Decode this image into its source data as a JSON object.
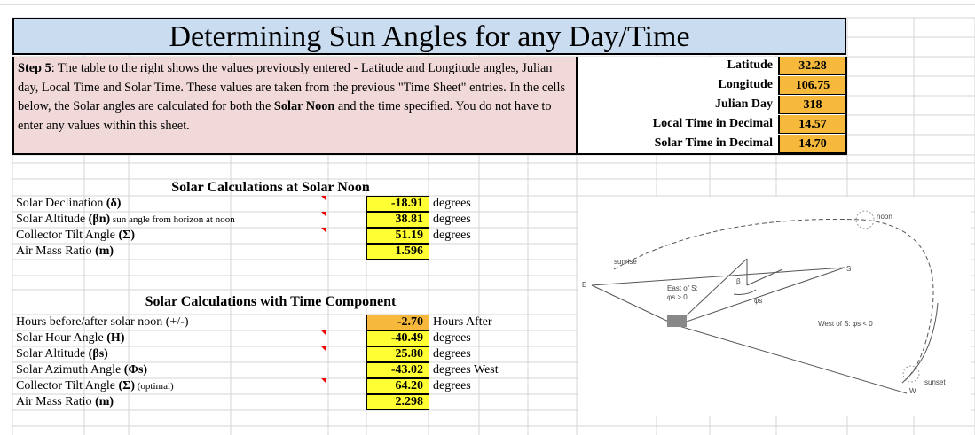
{
  "title": "Determining Sun Angles for any Day/Time",
  "intro": {
    "runs": [
      {
        "text": "Step 5",
        "bold": true
      },
      {
        "text": ": The table to the right shows the values previously entered - Latitude and Longitude angles, Julian day, Local Time and Solar Time. These values are taken from the previous \"Time Sheet\" entries. In the cells below, the Solar angles are calculated for both the ",
        "bold": false
      },
      {
        "text": "Solar Noon",
        "bold": true
      },
      {
        "text": " and the time specified. You do not have to enter any values within this sheet.",
        "bold": false
      }
    ]
  },
  "inputs": [
    {
      "label": "Latitude",
      "value": "32.28"
    },
    {
      "label": "Longitude",
      "value": "106.75"
    },
    {
      "label": "Julian Day",
      "value": "318"
    },
    {
      "label": "Local Time in Decimal",
      "value": "14.57"
    },
    {
      "label": "Solar Time in Decimal",
      "value": "14.70"
    }
  ],
  "sections": [
    {
      "heading": "Solar Calculations at Solar Noon",
      "rows": [
        {
          "label": "Solar Declination ",
          "symbol": "(δ)",
          "value": "-18.91",
          "unit": "degrees",
          "cell_color": "#ffff33"
        },
        {
          "label": "Solar Altitude ",
          "symbol": "(βn)",
          "note": " sun angle from horizon at noon",
          "value": "38.81",
          "unit": "degrees",
          "cell_color": "#ffff33"
        },
        {
          "label": "Collector Tilt Angle ",
          "symbol": "(Σ)",
          "value": "51.19",
          "unit": "degrees",
          "cell_color": "#ffff33"
        },
        {
          "label": "Air Mass Ratio ",
          "symbol": "(m)",
          "value": "1.596",
          "cell_color": "#ffff33"
        }
      ]
    },
    {
      "heading": "Solar Calculations with Time Component",
      "rows": [
        {
          "label": "Hours before/after solar noon (+/-)",
          "value": "-2.70",
          "unit": "Hours After",
          "cell_color": "#f6b93c"
        },
        {
          "label": "Solar Hour Angle ",
          "symbol": "(H)",
          "value": "-40.49",
          "unit": "degrees",
          "cell_color": "#ffff33"
        },
        {
          "label": "Solar Altitude ",
          "symbol": "(βs)",
          "value": "25.80",
          "unit": "degrees",
          "cell_color": "#ffff33"
        },
        {
          "label": "Solar Azimuth Angle ",
          "symbol": "(Φs)",
          "value": "-43.02",
          "unit": "degrees West",
          "cell_color": "#ffff33"
        },
        {
          "label": "Collector Tilt Angle ",
          "symbol": "(Σ)",
          "note": " (optimal)",
          "value": "64.20",
          "unit": "degrees",
          "cell_color": "#ffff33"
        },
        {
          "label": "Air Mass Ratio ",
          "symbol": "(m)",
          "value": "2.298",
          "cell_color": "#ffff33"
        }
      ]
    }
  ],
  "diagram": {
    "sunrise": "sunrise",
    "noon": "noon",
    "south": "S",
    "east": "E",
    "west": "W",
    "sunset": "sunset",
    "east_note_1": "East of S:",
    "east_note_2": "φs > 0",
    "west_note": "West of S: φs < 0",
    "beta": "β",
    "azimuth": "φs"
  }
}
